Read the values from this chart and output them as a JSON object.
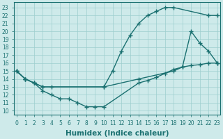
{
  "line1": {
    "x": [
      0,
      1,
      2,
      3,
      10,
      11,
      12,
      13,
      14,
      15,
      16,
      17,
      18,
      22,
      23
    ],
    "y": [
      15,
      14,
      13.5,
      13,
      13,
      15,
      17.5,
      19.5,
      21,
      22,
      22.5,
      23,
      23,
      22,
      22
    ],
    "color": "#1a7070",
    "marker": "+",
    "markersize": 5,
    "linewidth": 1.0
  },
  "line2": {
    "x": [
      0,
      1,
      2,
      3,
      4,
      10,
      14,
      18,
      19,
      20,
      21,
      22,
      23
    ],
    "y": [
      15,
      14,
      13.5,
      13,
      13,
      13,
      14,
      15,
      15.5,
      20,
      18.5,
      17.5,
      16
    ],
    "color": "#1a7070",
    "marker": "+",
    "markersize": 5,
    "linewidth": 1.0
  },
  "line3": {
    "x": [
      0,
      1,
      2,
      3,
      4,
      5,
      6,
      7,
      8,
      9,
      10,
      14,
      15,
      16,
      17,
      18,
      19,
      20,
      21,
      22,
      23
    ],
    "y": [
      15,
      14,
      13.5,
      12.5,
      12,
      11.5,
      11.5,
      11,
      10.5,
      10.5,
      10.5,
      13.5,
      13.8,
      14.2,
      14.7,
      15.2,
      15.5,
      15.7,
      15.8,
      16,
      16
    ],
    "color": "#1a7070",
    "marker": "+",
    "markersize": 5,
    "linewidth": 1.0
  },
  "xlim": [
    -0.3,
    23.3
  ],
  "ylim": [
    9.5,
    23.7
  ],
  "xticks": [
    0,
    1,
    2,
    3,
    4,
    5,
    6,
    7,
    8,
    9,
    10,
    11,
    12,
    13,
    14,
    15,
    16,
    17,
    18,
    19,
    20,
    21,
    22,
    23
  ],
  "yticks": [
    10,
    11,
    12,
    13,
    14,
    15,
    16,
    17,
    18,
    19,
    20,
    21,
    22,
    23
  ],
  "xlabel": "Humidex (Indice chaleur)",
  "background_color": "#ceeaea",
  "grid_color": "#9dcece",
  "tick_color": "#1a7070",
  "label_color": "#1a7070",
  "xlabel_fontsize": 7.5,
  "tick_fontsize": 5.5
}
